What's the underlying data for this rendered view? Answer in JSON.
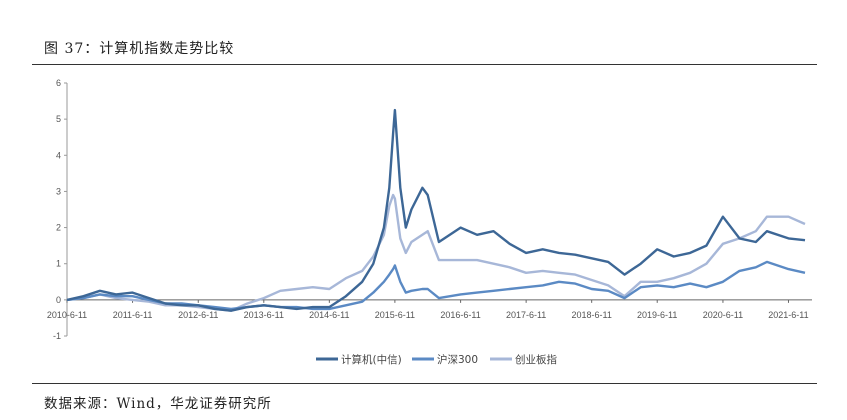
{
  "header": {
    "title": "图 37：计算机指数走势比较"
  },
  "footer": {
    "source": "数据来源：Wind，华龙证券研究所"
  },
  "chart_data": {
    "type": "line",
    "title": "",
    "xlabel": "",
    "ylabel": "",
    "ylim": [
      -1,
      6
    ],
    "yticks": [
      "-1",
      "0",
      "1",
      "2",
      "3",
      "4",
      "5",
      "6"
    ],
    "xticks": [
      "2010-6-11",
      "2011-6-11",
      "2012-6-11",
      "2013-6-11",
      "2014-6-11",
      "2015-6-11",
      "2016-6-11",
      "2017-6-11",
      "2018-6-11",
      "2019-6-11",
      "2020-6-11",
      "2021-6-11"
    ],
    "legend_position": "bottom",
    "grid": false,
    "x": [
      "2010-6-11",
      "2010-9-11",
      "2010-12-11",
      "2011-3-11",
      "2011-6-11",
      "2011-9-11",
      "2011-12-11",
      "2012-3-11",
      "2012-6-11",
      "2012-9-11",
      "2012-12-11",
      "2013-3-11",
      "2013-6-11",
      "2013-9-11",
      "2013-12-11",
      "2014-3-11",
      "2014-6-11",
      "2014-9-11",
      "2014-12-11",
      "2015-2-11",
      "2015-4-11",
      "2015-5-11",
      "2015-6-1",
      "2015-6-11",
      "2015-7-11",
      "2015-8-11",
      "2015-9-11",
      "2015-11-11",
      "2015-12-11",
      "2016-2-11",
      "2016-6-11",
      "2016-9-11",
      "2016-12-11",
      "2017-3-11",
      "2017-6-11",
      "2017-9-11",
      "2017-12-11",
      "2018-3-11",
      "2018-6-11",
      "2018-9-11",
      "2018-12-11",
      "2019-3-11",
      "2019-6-11",
      "2019-9-11",
      "2019-12-11",
      "2020-3-11",
      "2020-6-11",
      "2020-9-11",
      "2020-12-11",
      "2021-2-11",
      "2021-6-11",
      "2021-9-11"
    ],
    "series": [
      {
        "name": "计算机(中信)",
        "color": "#3d6796",
        "values": [
          0,
          0.1,
          0.25,
          0.15,
          0.2,
          0.05,
          -0.1,
          -0.15,
          -0.15,
          -0.25,
          -0.3,
          -0.2,
          -0.15,
          -0.2,
          -0.25,
          -0.2,
          -0.2,
          0.1,
          0.5,
          1.0,
          2.0,
          3.1,
          4.6,
          5.25,
          3.1,
          2.0,
          2.5,
          3.1,
          2.9,
          1.6,
          2.0,
          1.8,
          1.9,
          1.55,
          1.3,
          1.4,
          1.3,
          1.25,
          1.15,
          1.05,
          0.7,
          1.0,
          1.4,
          1.2,
          1.3,
          1.5,
          2.3,
          1.7,
          1.6,
          1.9,
          1.7,
          1.65
        ]
      },
      {
        "name": "沪深300",
        "color": "#5b8ac4",
        "values": [
          0,
          0.05,
          0.15,
          0.1,
          0.1,
          0.0,
          -0.1,
          -0.1,
          -0.15,
          -0.2,
          -0.25,
          -0.2,
          -0.15,
          -0.2,
          -0.2,
          -0.25,
          -0.25,
          -0.15,
          -0.05,
          0.2,
          0.5,
          0.7,
          0.85,
          0.95,
          0.5,
          0.2,
          0.25,
          0.3,
          0.3,
          0.05,
          0.15,
          0.2,
          0.25,
          0.3,
          0.35,
          0.4,
          0.5,
          0.45,
          0.3,
          0.25,
          0.05,
          0.35,
          0.4,
          0.35,
          0.45,
          0.35,
          0.5,
          0.8,
          0.9,
          1.05,
          0.85,
          0.75
        ]
      },
      {
        "name": "创业板指",
        "color": "#a7b7d8",
        "values": [
          0,
          0.05,
          0.15,
          0.05,
          0.0,
          -0.05,
          -0.15,
          -0.15,
          -0.2,
          -0.25,
          -0.3,
          -0.1,
          0.05,
          0.25,
          0.3,
          0.35,
          0.3,
          0.6,
          0.8,
          1.2,
          1.8,
          2.6,
          2.9,
          2.8,
          1.7,
          1.3,
          1.6,
          1.8,
          1.9,
          1.1,
          1.1,
          1.1,
          1.0,
          0.9,
          0.75,
          0.8,
          0.75,
          0.7,
          0.55,
          0.4,
          0.1,
          0.5,
          0.5,
          0.6,
          0.75,
          1.0,
          1.55,
          1.7,
          1.9,
          2.3,
          2.3,
          2.1
        ]
      }
    ]
  }
}
